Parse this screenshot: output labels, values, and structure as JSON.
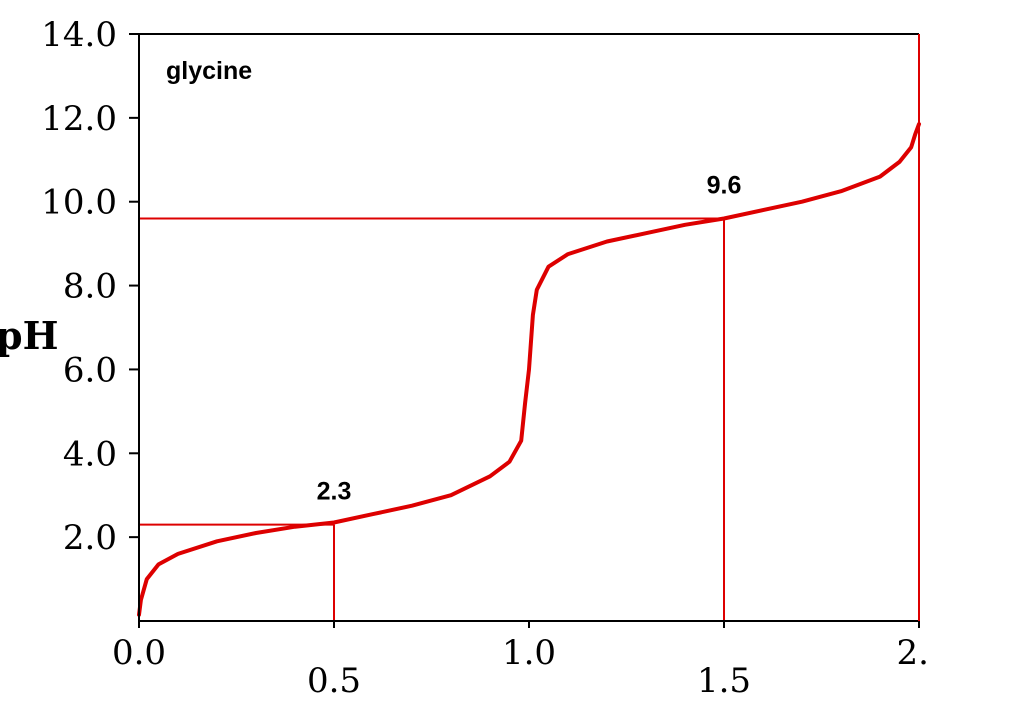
{
  "chart_data": {
    "type": "line",
    "title": "glycine",
    "xlabel": "",
    "ylabel": "pH",
    "xlim": [
      0,
      2
    ],
    "ylim": [
      0,
      14
    ],
    "x_ticks": [
      "0.0",
      "0.5",
      "1.0",
      "1.5",
      "2."
    ],
    "y_ticks": [
      "2.0",
      "4.0",
      "6.0",
      "8.0",
      "10.0",
      "12.0",
      "14.0"
    ],
    "y_tick_values": [
      2,
      4,
      6,
      8,
      10,
      12,
      14
    ],
    "series": [
      {
        "x": [
          0.0,
          0.005,
          0.02,
          0.05,
          0.1,
          0.2,
          0.3,
          0.4,
          0.5,
          0.6,
          0.7,
          0.8,
          0.9,
          0.95,
          0.98,
          0.99,
          1.0,
          1.01,
          1.02,
          1.05,
          1.1,
          1.2,
          1.3,
          1.4,
          1.5,
          1.6,
          1.7,
          1.8,
          1.9,
          1.95,
          1.98,
          1.99,
          2.0
        ],
        "y": [
          0.15,
          0.5,
          1.0,
          1.35,
          1.6,
          1.9,
          2.1,
          2.25,
          2.35,
          2.55,
          2.75,
          3.0,
          3.45,
          3.8,
          4.3,
          5.2,
          6.0,
          7.3,
          7.9,
          8.45,
          8.75,
          9.05,
          9.25,
          9.45,
          9.6,
          9.8,
          10.0,
          10.25,
          10.6,
          10.95,
          11.3,
          11.6,
          11.85
        ],
        "color": "#dd0000"
      }
    ],
    "reference_points": [
      {
        "x": 0.5,
        "y": 2.3,
        "label": "2.3"
      },
      {
        "x": 1.5,
        "y": 9.6,
        "label": "9.6"
      }
    ],
    "grid": false,
    "line_color": "#dd0000"
  }
}
